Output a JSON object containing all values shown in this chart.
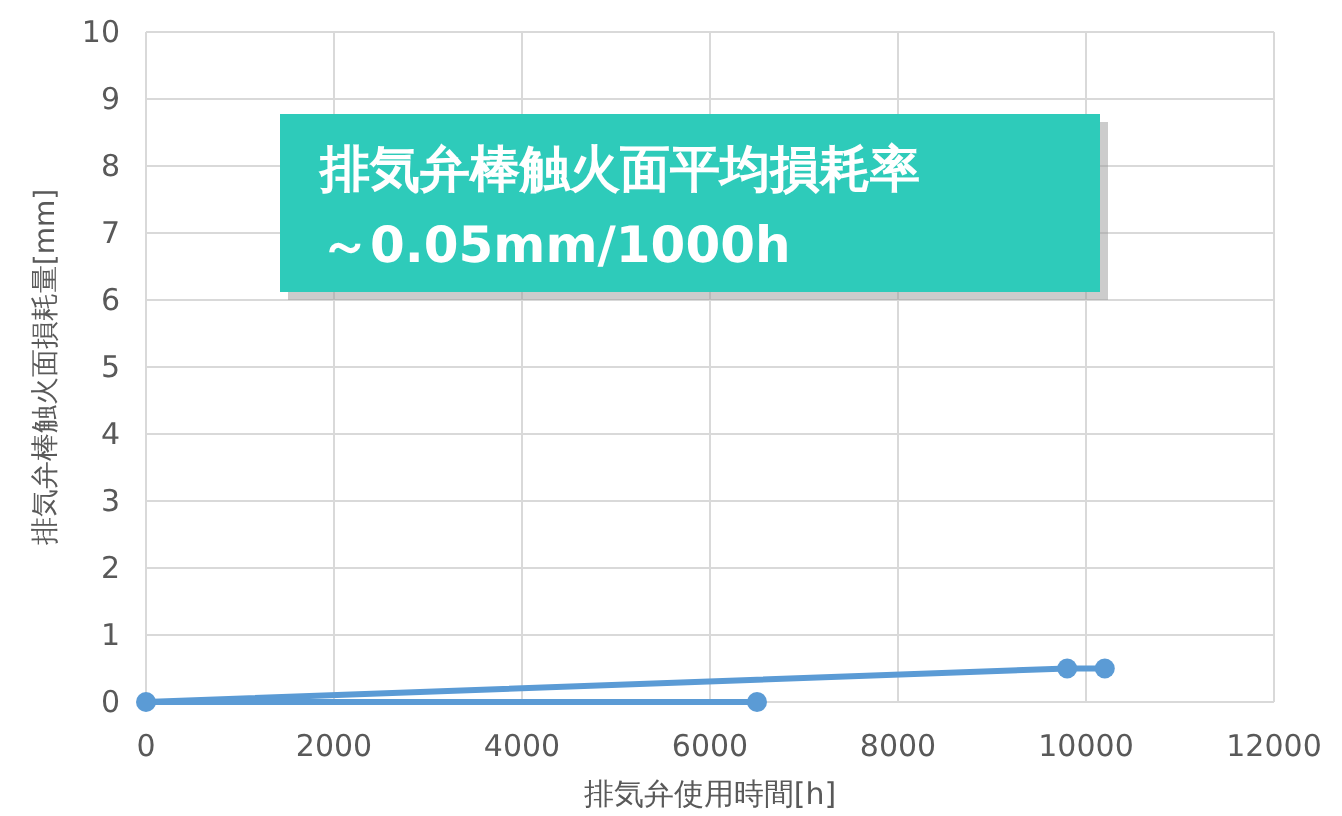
{
  "chart_data": {
    "type": "line",
    "xlabel": "排気弁使用時間[h]",
    "ylabel": "排気弁棒触火面損耗量[mm]",
    "annotations": [
      "排気弁棒触火面平均損耗率",
      "～0.05mm/1000h"
    ],
    "series": [
      {
        "color": "#5b9bd5",
        "x": [
          6500,
          0,
          9800,
          10200
        ],
        "values": [
          0,
          0,
          0.5,
          0.5
        ]
      }
    ],
    "xlim": [
      0,
      12000
    ],
    "xticks": [
      0,
      2000,
      4000,
      6000,
      8000,
      10000,
      12000
    ],
    "ylim": [
      0,
      10
    ],
    "yticks": [
      0,
      1,
      2,
      3,
      4,
      5,
      6,
      7,
      8,
      9,
      10
    ],
    "grid": true,
    "marker": "circle",
    "line_style": "solid"
  }
}
